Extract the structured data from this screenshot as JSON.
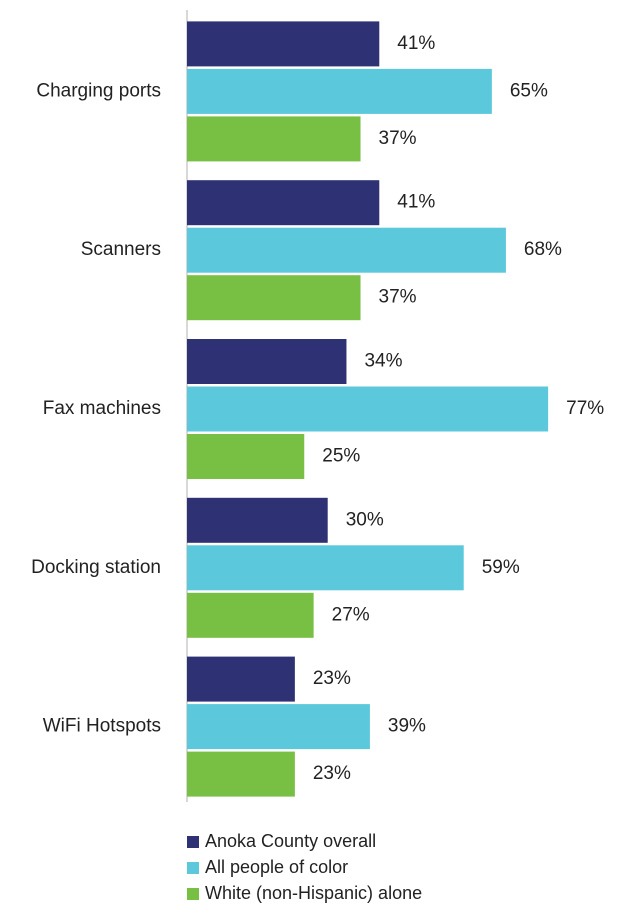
{
  "chart_data": {
    "type": "hbar",
    "categories": [
      "Charging ports",
      "Scanners",
      "Fax machines",
      "Docking station",
      "WiFi Hotspots"
    ],
    "series": [
      {
        "name": "Anoka County overall",
        "color": "#2e3174",
        "values": [
          41,
          41,
          34,
          30,
          23
        ],
        "value_labels": [
          "41%",
          "41%",
          "34%",
          "30%",
          "23%"
        ]
      },
      {
        "name": "All people of color",
        "color": "#5bc8dc",
        "values": [
          65,
          68,
          77,
          59,
          39
        ],
        "value_labels": [
          "65%",
          "68%",
          "77%",
          "59%",
          "39%"
        ]
      },
      {
        "name": "White (non-Hispanic) alone",
        "color": "#77c043",
        "values": [
          37,
          37,
          25,
          27,
          23
        ],
        "value_labels": [
          "37%",
          "37%",
          "25%",
          "27%",
          "23%"
        ]
      }
    ],
    "xlim": [
      0,
      100
    ],
    "legend": "bottom"
  }
}
